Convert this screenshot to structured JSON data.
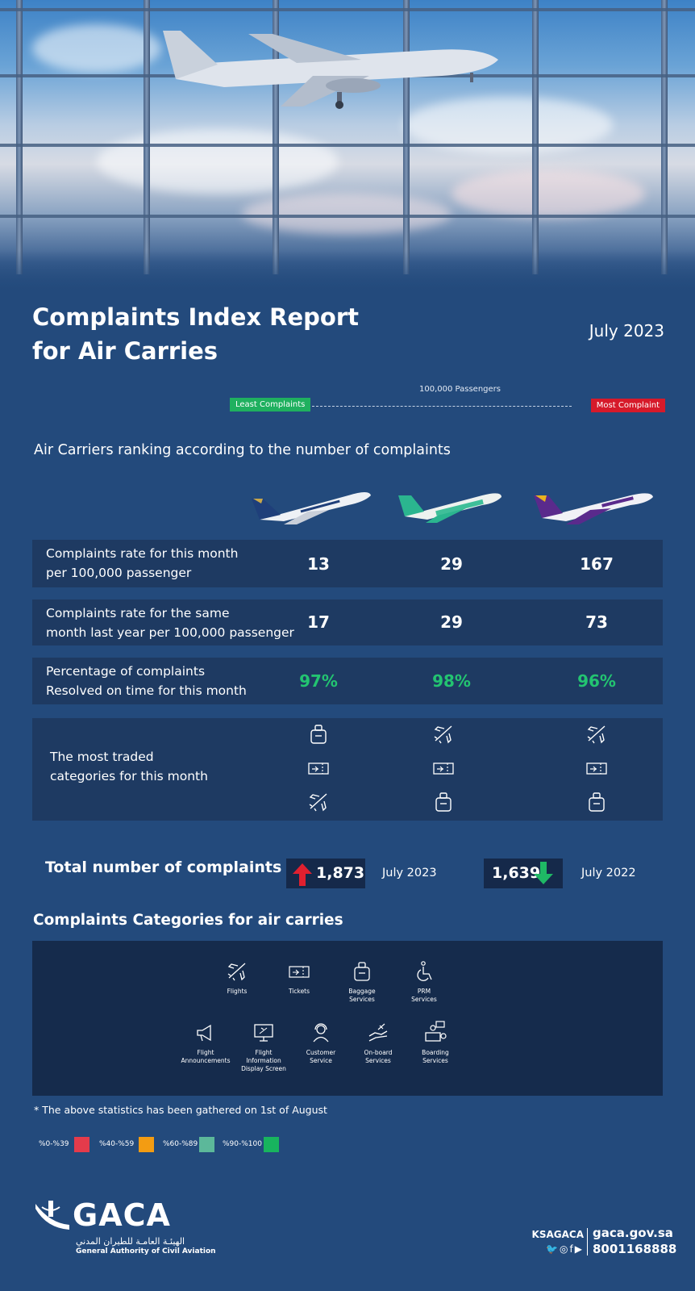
{
  "hero": {
    "image": "airport-window-with-plane-taking-off"
  },
  "header": {
    "title_line1": "Complaints Index Report",
    "title_line2": "for Air Carries",
    "month": "July 2023"
  },
  "scale": {
    "least": "Least Complaints",
    "most": "Most Complaint",
    "label": "100,000 Passengers",
    "least_color": "#1fb05f",
    "most_color": "#d61a2a"
  },
  "ranking_title": "Air Carriers ranking according to the number of complaints",
  "carriers": [
    {
      "icon": "saudia-plane-icon"
    },
    {
      "icon": "flynas-plane-icon"
    },
    {
      "icon": "flyadeal-plane-icon"
    }
  ],
  "rows": [
    {
      "label_line1": "Complaints rate for this month",
      "label_line2": "per 100,000 passenger",
      "values": [
        "13",
        "29",
        "167"
      ]
    },
    {
      "label_line1": "Complaints rate for the same",
      "label_line2": "month last year per 100,000 passenger",
      "values": [
        "17",
        "29",
        "73"
      ]
    },
    {
      "label_line1": "Percentage of complaints",
      "label_line2": "Resolved on time for this month",
      "values": [
        "97%",
        "98%",
        "96%"
      ]
    }
  ],
  "traded": {
    "label_line1": "The most traded",
    "label_line2": "categories for this month",
    "icons": [
      [
        "baggage-icon",
        "ticket-icon",
        "flight-icon"
      ],
      [
        "flight-icon",
        "ticket-icon",
        "baggage-icon"
      ],
      [
        "flight-icon",
        "ticket-icon",
        "baggage-icon"
      ]
    ]
  },
  "totals": {
    "label": "Total number of complaints",
    "current_value": "1,873",
    "current_date": "July 2023",
    "previous_value": "1,639",
    "previous_date": "July 2022"
  },
  "categories": {
    "title": "Complaints Categories for air carries",
    "items": [
      {
        "label_line1": "Flights",
        "label_line2": "",
        "label_line3": ""
      },
      {
        "label_line1": "Tickets",
        "label_line2": "",
        "label_line3": ""
      },
      {
        "label_line1": "Baggage",
        "label_line2": "Services",
        "label_line3": ""
      },
      {
        "label_line1": "PRM",
        "label_line2": "Services",
        "label_line3": ""
      },
      {
        "label_line1": "Flight",
        "label_line2": "Announcements",
        "label_line3": ""
      },
      {
        "label_line1": "Flight",
        "label_line2": "Information",
        "label_line3": "Display Screen"
      },
      {
        "label_line1": "Customer",
        "label_line2": "Service",
        "label_line3": ""
      },
      {
        "label_line1": "On-board",
        "label_line2": "Services",
        "label_line3": ""
      },
      {
        "label_line1": "Boarding",
        "label_line2": "Services",
        "label_line3": ""
      }
    ]
  },
  "footnote": "* The above statistics has been gathered on 1st of August",
  "legend": [
    {
      "label": "%0-%39",
      "color": "#e43b4b"
    },
    {
      "label": "%40-%59",
      "color": "#f39c12"
    },
    {
      "label": "%60-%89",
      "color": "#5cb89a"
    },
    {
      "label": "%90-%100",
      "color": "#18b45e"
    }
  ],
  "footer": {
    "logo_text": "GACA",
    "logo_arabic": "الهيئـة العامـة للطيران المدني",
    "logo_english": "General Authority of Civil Aviation",
    "handle": "KSAGACA",
    "website": "gaca.gov.sa",
    "phone": "8001168888"
  }
}
